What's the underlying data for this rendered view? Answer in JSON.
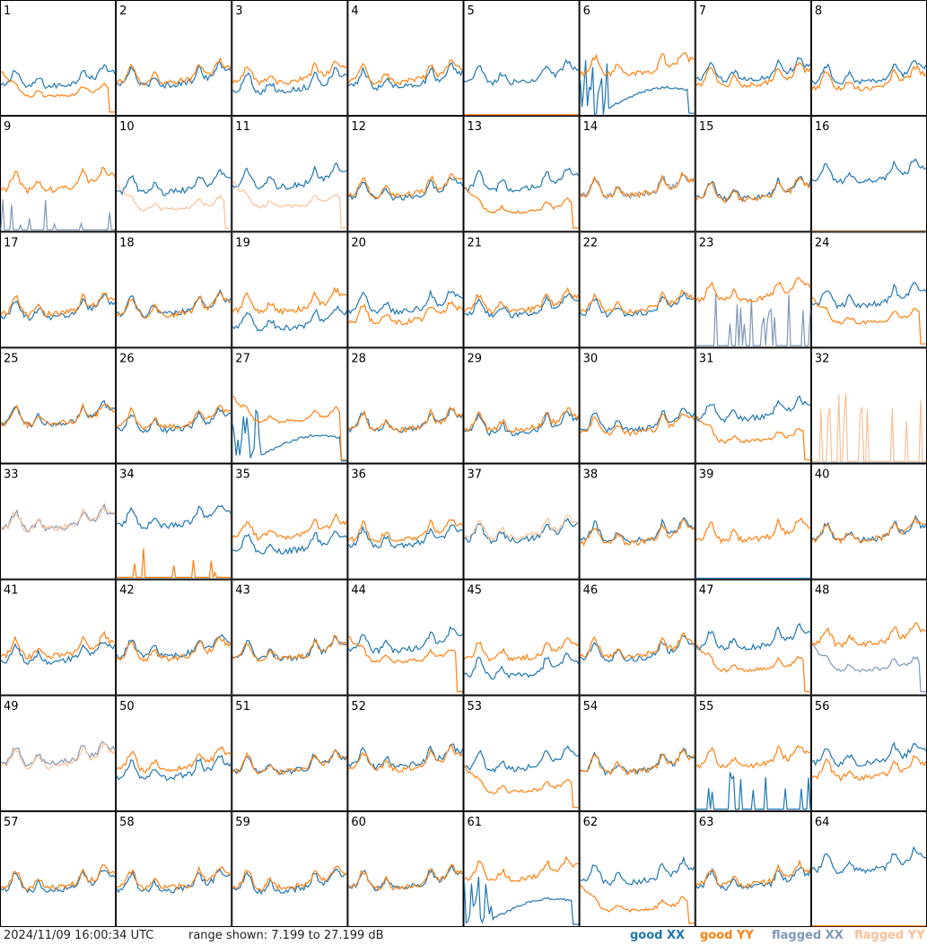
{
  "footer": {
    "timestamp": "2024/11/09 16:00:34 UTC",
    "range": "range shown: 7.199 to 27.199 dB",
    "legend": [
      {
        "prefix": "good ",
        "pol": "XX",
        "color": "#1f77b4"
      },
      {
        "prefix": "good ",
        "pol": "YY",
        "color": "#ff7f0e"
      },
      {
        "prefix": "flagged ",
        "pol": "XX",
        "color": "#8098b8"
      },
      {
        "prefix": "flagged ",
        "pol": "YY",
        "color": "#f8c096"
      }
    ]
  },
  "colors": {
    "good_xx": "#1f77b4",
    "good_yy": "#ff7f0e",
    "flagged_xx": "#8098b8",
    "flagged_yy": "#f8c096"
  },
  "chart_data": {
    "type": "line",
    "ylim": [
      7.199,
      27.199
    ],
    "yunit": "dB",
    "grid": false,
    "layout": "8x8 small multiples",
    "legend_placement": "bottom-right",
    "panels": [
      {
        "label": "1",
        "xx": "good",
        "yy": "good",
        "xx_level": 12.3,
        "yy_level": 10.5,
        "xx_shape": "normal",
        "yy_shape": "droop"
      },
      {
        "label": "2",
        "xx": "good",
        "yy": "good",
        "xx_level": 12.5,
        "yy_level": 13.0,
        "xx_shape": "normal",
        "yy_shape": "normal"
      },
      {
        "label": "3",
        "xx": "good",
        "yy": "good",
        "xx_level": 11.5,
        "yy_level": 13.0,
        "xx_shape": "normal",
        "yy_shape": "normal"
      },
      {
        "label": "4",
        "xx": "good",
        "yy": "good",
        "xx_level": 12.2,
        "yy_level": 13.0,
        "xx_shape": "normal",
        "yy_shape": "normal"
      },
      {
        "label": "5",
        "xx": "good",
        "yy": "good",
        "xx_level": 13.0,
        "yy_level": 7.2,
        "xx_shape": "normal",
        "yy_shape": "dead"
      },
      {
        "label": "6",
        "xx": "good",
        "yy": "good",
        "xx_level": 10.0,
        "yy_level": 14.5,
        "xx_shape": "spiky_decay",
        "yy_shape": "normal"
      },
      {
        "label": "7",
        "xx": "good",
        "yy": "good",
        "xx_level": 13.5,
        "yy_level": 12.5,
        "xx_shape": "normal",
        "yy_shape": "normal"
      },
      {
        "label": "8",
        "xx": "good",
        "yy": "good",
        "xx_level": 13.0,
        "yy_level": 12.0,
        "xx_shape": "normal",
        "yy_shape": "normal"
      },
      {
        "label": "9",
        "xx": "flagged",
        "yy": "good",
        "xx_level": 7.5,
        "yy_level": 14.5,
        "xx_shape": "spikes",
        "yy_shape": "normal"
      },
      {
        "label": "10",
        "xx": "good",
        "yy": "flagged",
        "xx_level": 14.0,
        "yy_level": 11.0,
        "xx_shape": "normal",
        "yy_shape": "droop"
      },
      {
        "label": "11",
        "xx": "good",
        "yy": "flagged",
        "xx_level": 15.0,
        "yy_level": 11.5,
        "xx_shape": "normal",
        "yy_shape": "droop"
      },
      {
        "label": "12",
        "xx": "good",
        "yy": "good",
        "xx_level": 13.0,
        "yy_level": 13.5,
        "xx_shape": "normal",
        "yy_shape": "normal"
      },
      {
        "label": "13",
        "xx": "good",
        "yy": "good",
        "xx_level": 14.5,
        "yy_level": 10.5,
        "xx_shape": "normal",
        "yy_shape": "droop"
      },
      {
        "label": "14",
        "xx": "flagged",
        "yy": "good",
        "xx_level": 13.5,
        "yy_level": 13.5,
        "xx_shape": "normal",
        "yy_shape": "normal"
      },
      {
        "label": "15",
        "xx": "good",
        "yy": "good",
        "xx_level": 13.0,
        "yy_level": 12.8,
        "xx_shape": "normal",
        "yy_shape": "normal"
      },
      {
        "label": "16",
        "xx": "good",
        "yy": "flagged",
        "xx_level": 16.0,
        "yy_level": 7.2,
        "xx_shape": "normal",
        "yy_shape": "dead"
      },
      {
        "label": "17",
        "xx": "good",
        "yy": "good",
        "xx_level": 12.5,
        "yy_level": 13.0,
        "xx_shape": "normal",
        "yy_shape": "normal"
      },
      {
        "label": "18",
        "xx": "good",
        "yy": "good",
        "xx_level": 13.0,
        "yy_level": 12.8,
        "xx_shape": "normal",
        "yy_shape": "normal"
      },
      {
        "label": "19",
        "xx": "good",
        "yy": "good",
        "xx_level": 10.5,
        "yy_level": 13.5,
        "xx_shape": "normal",
        "yy_shape": "normal"
      },
      {
        "label": "20",
        "xx": "good",
        "yy": "good",
        "xx_level": 13.5,
        "yy_level": 11.5,
        "xx_shape": "normal",
        "yy_shape": "normal"
      },
      {
        "label": "21",
        "xx": "good",
        "yy": "good",
        "xx_level": 12.8,
        "yy_level": 13.5,
        "xx_shape": "normal",
        "yy_shape": "normal"
      },
      {
        "label": "22",
        "xx": "good",
        "yy": "good",
        "xx_level": 13.0,
        "yy_level": 13.5,
        "xx_shape": "normal",
        "yy_shape": "normal"
      },
      {
        "label": "23",
        "xx": "flagged",
        "yy": "good",
        "xx_level": 11.0,
        "yy_level": 15.5,
        "xx_shape": "spikes",
        "yy_shape": "normal"
      },
      {
        "label": "24",
        "xx": "good",
        "yy": "good",
        "xx_level": 14.5,
        "yy_level": 11.5,
        "xx_shape": "normal",
        "yy_shape": "droop"
      },
      {
        "label": "25",
        "xx": "good",
        "yy": "good",
        "xx_level": 14.0,
        "yy_level": 14.0,
        "xx_shape": "normal",
        "yy_shape": "normal"
      },
      {
        "label": "26",
        "xx": "good",
        "yy": "good",
        "xx_level": 13.0,
        "yy_level": 13.5,
        "xx_shape": "normal",
        "yy_shape": "normal"
      },
      {
        "label": "27",
        "xx": "good",
        "yy": "good",
        "xx_level": 10.0,
        "yy_level": 14.5,
        "xx_shape": "spiky_decay",
        "yy_shape": "droop"
      },
      {
        "label": "28",
        "xx": "good",
        "yy": "good",
        "xx_level": 13.0,
        "yy_level": 13.0,
        "xx_shape": "normal",
        "yy_shape": "normal"
      },
      {
        "label": "29",
        "xx": "good",
        "yy": "good",
        "xx_level": 12.5,
        "yy_level": 13.0,
        "xx_shape": "normal",
        "yy_shape": "normal"
      },
      {
        "label": "30",
        "xx": "good",
        "yy": "good",
        "xx_level": 13.0,
        "yy_level": 12.5,
        "xx_shape": "normal",
        "yy_shape": "normal"
      },
      {
        "label": "31",
        "xx": "good",
        "yy": "good",
        "xx_level": 15.0,
        "yy_level": 11.0,
        "xx_shape": "normal",
        "yy_shape": "droop"
      },
      {
        "label": "32",
        "xx": "flagged",
        "yy": "flagged",
        "xx_level": 7.2,
        "yy_level": 13.5,
        "xx_shape": "dead",
        "yy_shape": "spikes"
      },
      {
        "label": "33",
        "xx": "flagged",
        "yy": "flagged",
        "xx_level": 16.0,
        "yy_level": 16.0,
        "xx_shape": "normal",
        "yy_shape": "normal"
      },
      {
        "label": "34",
        "xx": "good",
        "yy": "good",
        "xx_level": 16.5,
        "yy_level": 7.5,
        "xx_shape": "normal",
        "yy_shape": "spikes"
      },
      {
        "label": "35",
        "xx": "good",
        "yy": "good",
        "xx_level": 12.0,
        "yy_level": 14.5,
        "xx_shape": "normal",
        "yy_shape": "normal"
      },
      {
        "label": "36",
        "xx": "good",
        "yy": "good",
        "xx_level": 13.0,
        "yy_level": 14.0,
        "xx_shape": "normal",
        "yy_shape": "normal"
      },
      {
        "label": "37",
        "xx": "good",
        "yy": "flagged",
        "xx_level": 14.0,
        "yy_level": 14.5,
        "xx_shape": "normal",
        "yy_shape": "normal"
      },
      {
        "label": "38",
        "xx": "good",
        "yy": "good",
        "xx_level": 14.0,
        "yy_level": 13.5,
        "xx_shape": "normal",
        "yy_shape": "normal"
      },
      {
        "label": "39",
        "xx": "good",
        "yy": "good",
        "xx_level": 7.2,
        "yy_level": 14.0,
        "xx_shape": "dead",
        "yy_shape": "normal"
      },
      {
        "label": "40",
        "xx": "good",
        "yy": "good",
        "xx_level": 14.0,
        "yy_level": 14.0,
        "xx_shape": "normal",
        "yy_shape": "normal"
      },
      {
        "label": "41",
        "xx": "good",
        "yy": "good",
        "xx_level": 13.0,
        "yy_level": 14.0,
        "xx_shape": "normal",
        "yy_shape": "normal"
      },
      {
        "label": "42",
        "xx": "good",
        "yy": "good",
        "xx_level": 14.0,
        "yy_level": 13.5,
        "xx_shape": "normal",
        "yy_shape": "normal"
      },
      {
        "label": "43",
        "xx": "good",
        "yy": "good",
        "xx_level": 13.5,
        "yy_level": 13.5,
        "xx_shape": "normal",
        "yy_shape": "normal"
      },
      {
        "label": "44",
        "xx": "good",
        "yy": "good",
        "xx_level": 15.0,
        "yy_level": 13.0,
        "xx_shape": "normal",
        "yy_shape": "droop"
      },
      {
        "label": "45",
        "xx": "good",
        "yy": "good",
        "xx_level": 10.5,
        "yy_level": 13.5,
        "xx_shape": "normal",
        "yy_shape": "normal"
      },
      {
        "label": "46",
        "xx": "good",
        "yy": "good",
        "xx_level": 13.5,
        "yy_level": 14.0,
        "xx_shape": "normal",
        "yy_shape": "normal"
      },
      {
        "label": "47",
        "xx": "good",
        "yy": "good",
        "xx_level": 15.5,
        "yy_level": 11.5,
        "xx_shape": "normal",
        "yy_shape": "droop"
      },
      {
        "label": "48",
        "xx": "flagged",
        "yy": "good",
        "xx_level": 11.5,
        "yy_level": 16.0,
        "xx_shape": "droop",
        "yy_shape": "normal"
      },
      {
        "label": "49",
        "xx": "flagged",
        "yy": "flagged",
        "xx_level": 15.5,
        "yy_level": 15.0,
        "xx_shape": "normal",
        "yy_shape": "normal"
      },
      {
        "label": "50",
        "xx": "good",
        "yy": "good",
        "xx_level": 13.0,
        "yy_level": 14.5,
        "xx_shape": "normal",
        "yy_shape": "normal"
      },
      {
        "label": "51",
        "xx": "good",
        "yy": "good",
        "xx_level": 14.0,
        "yy_level": 14.0,
        "xx_shape": "normal",
        "yy_shape": "normal"
      },
      {
        "label": "52",
        "xx": "good",
        "yy": "good",
        "xx_level": 15.0,
        "yy_level": 14.5,
        "xx_shape": "normal",
        "yy_shape": "normal"
      },
      {
        "label": "53",
        "xx": "good",
        "yy": "good",
        "xx_level": 14.5,
        "yy_level": 10.5,
        "xx_shape": "normal",
        "yy_shape": "droop"
      },
      {
        "label": "54",
        "xx": "good",
        "yy": "good",
        "xx_level": 14.0,
        "yy_level": 14.0,
        "xx_shape": "normal",
        "yy_shape": "normal"
      },
      {
        "label": "55",
        "xx": "good",
        "yy": "good",
        "xx_level": 8.0,
        "yy_level": 15.0,
        "xx_shape": "spikes",
        "yy_shape": "normal"
      },
      {
        "label": "56",
        "xx": "good",
        "yy": "good",
        "xx_level": 15.5,
        "yy_level": 13.0,
        "xx_shape": "normal",
        "yy_shape": "normal"
      },
      {
        "label": "57",
        "xx": "good",
        "yy": "good",
        "xx_level": 13.5,
        "yy_level": 14.0,
        "xx_shape": "normal",
        "yy_shape": "normal"
      },
      {
        "label": "58",
        "xx": "good",
        "yy": "good",
        "xx_level": 13.5,
        "yy_level": 14.0,
        "xx_shape": "normal",
        "yy_shape": "normal"
      },
      {
        "label": "59",
        "xx": "good",
        "yy": "good",
        "xx_level": 13.5,
        "yy_level": 14.0,
        "xx_shape": "normal",
        "yy_shape": "normal"
      },
      {
        "label": "60",
        "xx": "good",
        "yy": "good",
        "xx_level": 14.0,
        "yy_level": 14.0,
        "xx_shape": "normal",
        "yy_shape": "normal"
      },
      {
        "label": "61",
        "xx": "good",
        "yy": "good",
        "xx_level": 10.0,
        "yy_level": 15.5,
        "xx_shape": "spiky_decay",
        "yy_shape": "normal"
      },
      {
        "label": "62",
        "xx": "good",
        "yy": "good",
        "xx_level": 15.0,
        "yy_level": 10.0,
        "xx_shape": "normal",
        "yy_shape": "droop"
      },
      {
        "label": "63",
        "xx": "good",
        "yy": "good",
        "xx_level": 14.0,
        "yy_level": 14.5,
        "xx_shape": "normal",
        "yy_shape": "normal"
      },
      {
        "label": "64",
        "xx": "good",
        "yy": "good",
        "xx_level": 17.0,
        "yy_level": 7.2,
        "xx_shape": "normal",
        "yy_shape": "dead"
      }
    ]
  }
}
